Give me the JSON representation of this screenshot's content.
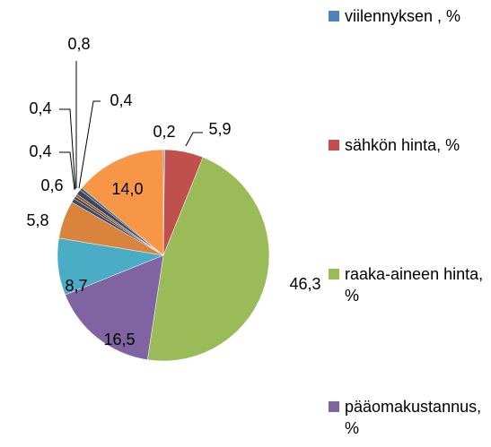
{
  "chart_data": {
    "type": "pie",
    "categories": [
      "viilennyksen , %",
      "sähkön hinta, %",
      "raaka-aineen hinta, %",
      "pääomakustannus, %",
      null,
      null,
      null,
      null,
      null,
      null,
      null,
      null
    ],
    "values": [
      0.2,
      5.9,
      46.3,
      16.5,
      8.7,
      5.8,
      0.6,
      0.4,
      0.4,
      0.8,
      0.4,
      14.0
    ],
    "value_labels": [
      "0,2",
      "5,9",
      "46,3",
      "16,5",
      "8,7",
      "5,8",
      "0,6",
      "0,4",
      "0,4",
      "0,8",
      "0,4",
      "14,0"
    ],
    "colors": [
      "#4f81bd",
      "#c0504d",
      "#9bbb59",
      "#8064a2",
      "#4bacc6",
      "#d9833d",
      "#2c4d75",
      "#772c2a",
      "#5f7530",
      "#4d3b62",
      "#276a7c",
      "#f79646"
    ],
    "legend": "right"
  }
}
